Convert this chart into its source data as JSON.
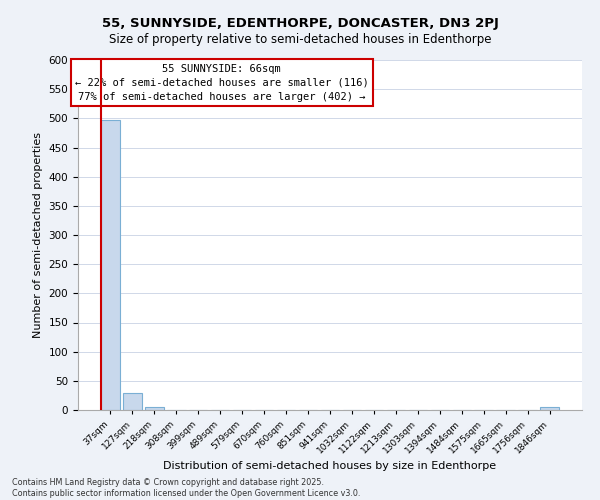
{
  "title": "55, SUNNYSIDE, EDENTHORPE, DONCASTER, DN3 2PJ",
  "subtitle": "Size of property relative to semi-detached houses in Edenthorpe",
  "xlabel": "Distribution of semi-detached houses by size in Edenthorpe",
  "ylabel": "Number of semi-detached properties",
  "categories": [
    "37sqm",
    "127sqm",
    "218sqm",
    "308sqm",
    "399sqm",
    "489sqm",
    "579sqm",
    "670sqm",
    "760sqm",
    "851sqm",
    "941sqm",
    "1032sqm",
    "1122sqm",
    "1213sqm",
    "1303sqm",
    "1394sqm",
    "1484sqm",
    "1575sqm",
    "1665sqm",
    "1756sqm",
    "1846sqm"
  ],
  "values": [
    497,
    30,
    5,
    0,
    0,
    0,
    0,
    0,
    0,
    0,
    0,
    0,
    0,
    0,
    0,
    0,
    0,
    0,
    0,
    0,
    5
  ],
  "bar_color": "#c8d8ec",
  "bar_edge_color": "#7aafd4",
  "property_line_x": -0.5,
  "property_line_color": "#cc0000",
  "annotation_title": "55 SUNNYSIDE: 66sqm",
  "annotation_line2": "← 22% of semi-detached houses are smaller (116)",
  "annotation_line3": "77% of semi-detached houses are larger (402) →",
  "box_edge_color": "#cc0000",
  "ylim": [
    0,
    600
  ],
  "yticks": [
    0,
    50,
    100,
    150,
    200,
    250,
    300,
    350,
    400,
    450,
    500,
    550,
    600
  ],
  "footer": "Contains HM Land Registry data © Crown copyright and database right 2025.\nContains public sector information licensed under the Open Government Licence v3.0.",
  "bg_color": "#eef2f8",
  "plot_bg_color": "#ffffff",
  "grid_color": "#d0d8e8"
}
